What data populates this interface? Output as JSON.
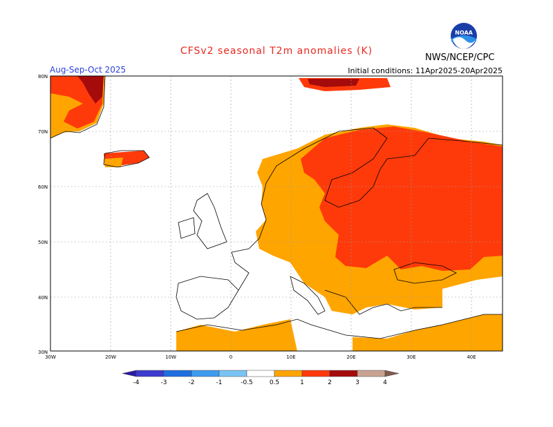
{
  "header": {
    "title": "CFSv2 seasonal T2m anomalies (K)",
    "season": "Aug-Sep-Oct 2025",
    "initial_conditions": "Initial conditions: 11Apr2025-20Apr2025",
    "agency": "NWS/NCEP/CPC",
    "logo_text": "NOAA"
  },
  "map": {
    "lat_labels": [
      "80N",
      "70N",
      "60N",
      "50N",
      "40N",
      "30N"
    ],
    "lon_labels": [
      "30W",
      "20W",
      "10W",
      "0",
      "10E",
      "20E",
      "30E",
      "40E"
    ],
    "lon_range": [
      -30,
      45
    ],
    "lat_range": [
      30,
      80
    ]
  },
  "colorbar": {
    "levels": [
      "-4",
      "-3",
      "-2",
      "-1",
      "-0.5",
      "0.5",
      "1",
      "2",
      "3",
      "4"
    ],
    "colors": [
      "#2b1aa6",
      "#3b3bcf",
      "#1f6fe0",
      "#3e9cf0",
      "#79c4f4",
      "#ffffff",
      "#ffa500",
      "#ff3a0a",
      "#a50b0b",
      "#c9a392",
      "#825a4e"
    ]
  }
}
